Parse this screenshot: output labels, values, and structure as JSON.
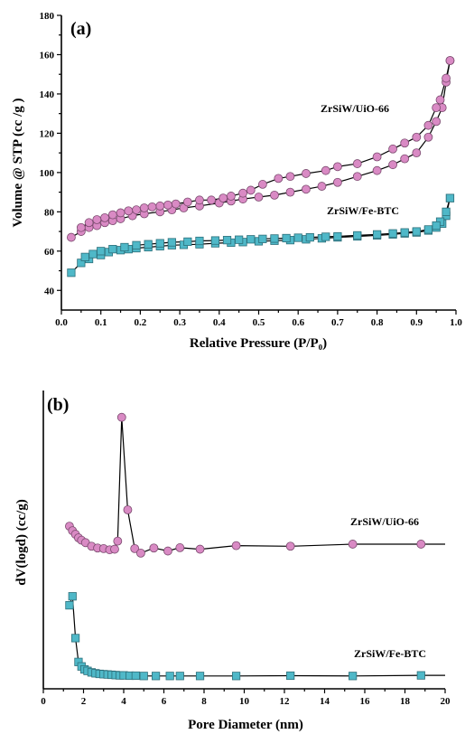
{
  "chart_data": [
    {
      "type": "scatter",
      "panel_label": "(a)",
      "xlabel": "Relative Pressure (P/P₀)",
      "ylabel": "Volume @ STP (cc /g )",
      "xlim": [
        0.0,
        1.0
      ],
      "ylim": [
        30,
        180
      ],
      "xticks": [
        "0.0",
        "0.1",
        "0.2",
        "0.3",
        "0.4",
        "0.5",
        "0.6",
        "0.7",
        "0.8",
        "0.9",
        "1.0"
      ],
      "yticks": [
        "40",
        "60",
        "80",
        "100",
        "120",
        "140",
        "160",
        "180"
      ],
      "series": [
        {
          "name": "ZrSiW/UiO-66",
          "marker": "circle",
          "color": "#d98ac4",
          "adsorption": {
            "x": [
              0.025,
              0.05,
              0.07,
              0.09,
              0.11,
              0.13,
              0.15,
              0.18,
              0.21,
              0.25,
              0.28,
              0.31,
              0.35,
              0.4,
              0.43,
              0.46,
              0.5,
              0.54,
              0.58,
              0.62,
              0.66,
              0.7,
              0.75,
              0.8,
              0.84,
              0.87,
              0.9,
              0.93,
              0.95,
              0.965,
              0.975,
              0.985
            ],
            "y": [
              67,
              70,
              72,
              73,
              74.5,
              75.5,
              76.5,
              78,
              79,
              80,
              81,
              82,
              83,
              84.5,
              85.5,
              86.5,
              87.5,
              88.5,
              90,
              91.5,
              93,
              95,
              98,
              101,
              104,
              107,
              110,
              118,
              126,
              133,
              146,
              157
            ]
          },
          "desorption": {
            "x": [
              0.985,
              0.975,
              0.96,
              0.95,
              0.93,
              0.9,
              0.87,
              0.84,
              0.8,
              0.75,
              0.7,
              0.67,
              0.62,
              0.58,
              0.55,
              0.51,
              0.48,
              0.46,
              0.43,
              0.41,
              0.38,
              0.35,
              0.32,
              0.29,
              0.27,
              0.25,
              0.23,
              0.21,
              0.19,
              0.17,
              0.15,
              0.13,
              0.11,
              0.09,
              0.07,
              0.05
            ],
            "y": [
              157,
              148,
              137,
              133,
              124,
              118,
              115,
              112,
              108,
              104.5,
              103,
              101,
              99.5,
              98,
              97,
              94,
              91,
              89.5,
              88,
              87,
              86,
              86,
              85,
              84,
              83.5,
              83,
              82.5,
              82,
              81,
              80.5,
              79.5,
              78.5,
              77,
              76,
              74.5,
              72
            ]
          }
        },
        {
          "name": "ZrSiW/Fe-BTC",
          "marker": "square",
          "color": "#4fb8c8",
          "adsorption": {
            "x": [
              0.025,
              0.05,
              0.07,
              0.1,
              0.12,
              0.15,
              0.17,
              0.19,
              0.22,
              0.25,
              0.28,
              0.31,
              0.35,
              0.39,
              0.43,
              0.46,
              0.5,
              0.54,
              0.58,
              0.62,
              0.66,
              0.7,
              0.75,
              0.8,
              0.84,
              0.87,
              0.9,
              0.93,
              0.95,
              0.965,
              0.975,
              0.985
            ],
            "y": [
              49,
              54,
              56,
              58,
              59.5,
              60.5,
              61,
              61.5,
              62,
              62.5,
              63,
              63.2,
              63.5,
              64,
              64.3,
              64.6,
              65,
              65.3,
              65.6,
              66,
              66.5,
              67,
              67.5,
              68,
              68.5,
              69,
              69.5,
              70.5,
              72,
              74,
              78,
              87
            ]
          },
          "desorption": {
            "x": [
              0.985,
              0.975,
              0.96,
              0.95,
              0.93,
              0.9,
              0.87,
              0.84,
              0.8,
              0.75,
              0.7,
              0.67,
              0.63,
              0.6,
              0.57,
              0.54,
              0.51,
              0.48,
              0.45,
              0.42,
              0.39,
              0.35,
              0.32,
              0.28,
              0.25,
              0.22,
              0.19,
              0.16,
              0.13,
              0.1,
              0.08,
              0.06
            ],
            "y": [
              87,
              80,
              75,
              73,
              71,
              70,
              69.5,
              69,
              68.5,
              68,
              67.5,
              67.3,
              67,
              66.8,
              66.6,
              66.4,
              66.2,
              66,
              65.8,
              65.6,
              65.4,
              65.2,
              64.8,
              64.5,
              64,
              63.5,
              63,
              62,
              61,
              60,
              58.5,
              57
            ]
          }
        }
      ]
    },
    {
      "type": "line",
      "panel_label": "(b)",
      "xlabel": "Pore Diameter (nm)",
      "ylabel": "dV(logd)  (cc/g)",
      "xlim": [
        0,
        20
      ],
      "ylim": [
        0,
        1
      ],
      "y_ticks_shown": false,
      "xticks": [
        "0",
        "2",
        "4",
        "6",
        "8",
        "10",
        "12",
        "14",
        "16",
        "18",
        "20"
      ],
      "series": [
        {
          "name": "ZrSiW/UiO-66",
          "marker": "circle",
          "color": "#d98ac4",
          "x": [
            1.3,
            1.45,
            1.6,
            1.75,
            1.9,
            2.1,
            2.4,
            2.7,
            3.0,
            3.3,
            3.55,
            3.7,
            3.9,
            4.2,
            4.55,
            4.85,
            5.5,
            6.2,
            6.8,
            7.8,
            9.6,
            12.3,
            15.4,
            18.8,
            20.0
          ],
          "y": [
            0.545,
            0.53,
            0.518,
            0.506,
            0.498,
            0.49,
            0.478,
            0.472,
            0.47,
            0.466,
            0.468,
            0.495,
            0.91,
            0.6,
            0.47,
            0.455,
            0.472,
            0.462,
            0.473,
            0.468,
            0.48,
            0.478,
            0.485,
            0.485,
            0.485
          ]
        },
        {
          "name": "ZrSiW/Fe-BTC",
          "marker": "square",
          "color": "#4fb8c8",
          "x": [
            1.3,
            1.45,
            1.6,
            1.75,
            1.9,
            2.05,
            2.2,
            2.4,
            2.6,
            2.8,
            3.0,
            3.2,
            3.4,
            3.6,
            3.8,
            4.0,
            4.3,
            4.6,
            5.0,
            5.6,
            6.3,
            6.8,
            7.8,
            9.6,
            12.3,
            15.4,
            18.8,
            20.0
          ],
          "y": [
            0.28,
            0.31,
            0.17,
            0.09,
            0.075,
            0.065,
            0.06,
            0.055,
            0.052,
            0.05,
            0.049,
            0.048,
            0.047,
            0.046,
            0.045,
            0.045,
            0.044,
            0.044,
            0.043,
            0.043,
            0.043,
            0.043,
            0.043,
            0.043,
            0.044,
            0.043,
            0.045,
            0.045
          ]
        }
      ]
    }
  ]
}
